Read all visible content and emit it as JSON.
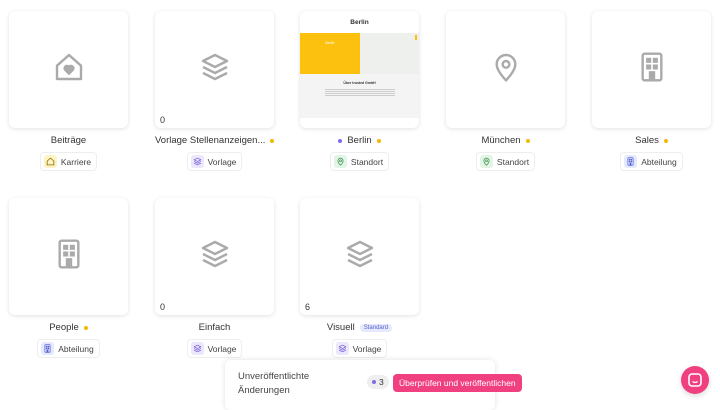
{
  "colors": {
    "accent": "#f0407f",
    "dot_yellow": "#f5b800",
    "dot_purple": "#7c6ee6"
  },
  "items": [
    {
      "title": "Beiträge",
      "icon": "home-heart-icon",
      "tag": {
        "label": "Karriere",
        "icon": "home-icon"
      }
    },
    {
      "title": "Vorlage Stellenanzeigen...",
      "icon": "layers-icon",
      "count": "0",
      "dot": "yellow",
      "tag": {
        "label": "Vorlage",
        "icon": "layers-icon"
      }
    },
    {
      "title": "Berlin",
      "preview": {
        "heading": "Berlin",
        "banner": "Berlin",
        "section": "Über trusted GmbH"
      },
      "dot_before": "purple",
      "dot": "yellow",
      "tag": {
        "label": "Standort",
        "icon": "map-pin-icon"
      }
    },
    {
      "title": "München",
      "icon": "map-pin-icon",
      "dot": "yellow",
      "tag": {
        "label": "Standort",
        "icon": "map-pin-icon"
      }
    },
    {
      "title": "Sales",
      "icon": "building-icon",
      "dot": "yellow",
      "tag": {
        "label": "Abteilung",
        "icon": "building-icon"
      }
    },
    {
      "title": "People",
      "icon": "building-icon",
      "dot": "yellow",
      "tag": {
        "label": "Abteilung",
        "icon": "building-icon"
      }
    },
    {
      "title": "Einfach",
      "icon": "layers-icon",
      "count": "0",
      "tag": {
        "label": "Vorlage",
        "icon": "layers-icon"
      }
    },
    {
      "title": "Visuell",
      "icon": "layers-icon",
      "count": "6",
      "badge": "Standard",
      "tag": {
        "label": "Vorlage",
        "icon": "layers-icon"
      }
    }
  ],
  "footer": {
    "text_line1": "Unveröffentlichte",
    "text_line2": "Änderungen",
    "count": "3",
    "publish_label": "Überprüfen und veröffentlichen"
  }
}
